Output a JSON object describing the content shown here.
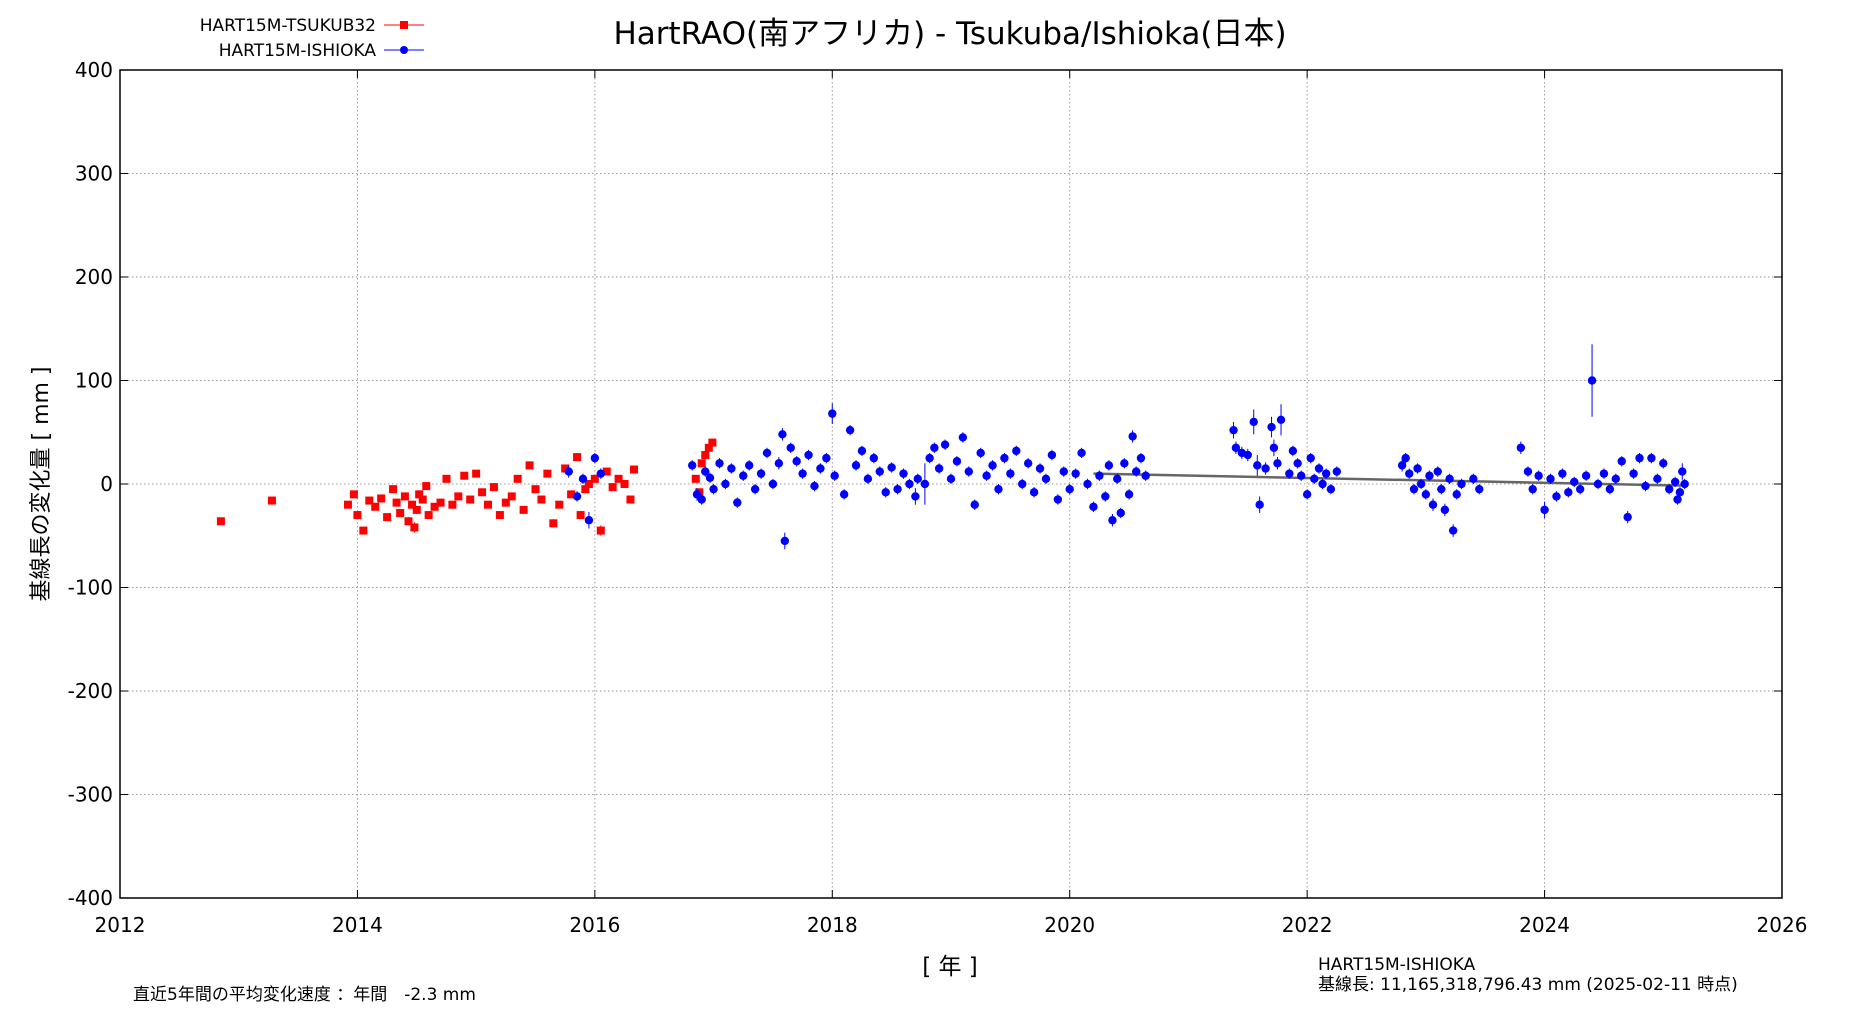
{
  "chart_data": {
    "type": "scatter",
    "title": "HartRAO(南アフリカ) - Tsukuba/Ishioka(日本)",
    "xlabel": "[ 年 ]",
    "ylabel": "基線長の変化量 [ mm ]",
    "xlim": [
      2012,
      2026
    ],
    "ylim": [
      -400,
      400
    ],
    "xticks": [
      "2012",
      "2014",
      "2016",
      "2018",
      "2020",
      "2022",
      "2024",
      "2026"
    ],
    "yticks": [
      "400",
      "300",
      "200",
      "100",
      "0",
      "-100",
      "-200",
      "-300",
      "-400"
    ],
    "grid": true,
    "legend_position": "top-left",
    "series": [
      {
        "name": "HART15M-TSUKUB32",
        "color": "#ff0000",
        "marker": "square",
        "points": [
          [
            2012.85,
            -36,
            0
          ],
          [
            2013.28,
            -16,
            0
          ],
          [
            2013.92,
            -20,
            0
          ],
          [
            2013.97,
            -10,
            0
          ],
          [
            2014.0,
            -30,
            0
          ],
          [
            2014.05,
            -45,
            0
          ],
          [
            2014.1,
            -16,
            0
          ],
          [
            2014.15,
            -22,
            0
          ],
          [
            2014.2,
            -14,
            0
          ],
          [
            2014.25,
            -32,
            3
          ],
          [
            2014.3,
            -5,
            0
          ],
          [
            2014.33,
            -18,
            0
          ],
          [
            2014.36,
            -28,
            3
          ],
          [
            2014.4,
            -12,
            0
          ],
          [
            2014.43,
            -36,
            4
          ],
          [
            2014.46,
            -20,
            0
          ],
          [
            2014.48,
            -42,
            5
          ],
          [
            2014.5,
            -25,
            0
          ],
          [
            2014.52,
            -10,
            0
          ],
          [
            2014.55,
            -15,
            0
          ],
          [
            2014.58,
            -2,
            0
          ],
          [
            2014.6,
            -30,
            0
          ],
          [
            2014.65,
            -22,
            0
          ],
          [
            2014.7,
            -18,
            0
          ],
          [
            2014.75,
            5,
            0
          ],
          [
            2014.8,
            -20,
            0
          ],
          [
            2014.85,
            -12,
            0
          ],
          [
            2014.9,
            8,
            0
          ],
          [
            2014.95,
            -15,
            0
          ],
          [
            2015.0,
            10,
            0
          ],
          [
            2015.05,
            -8,
            0
          ],
          [
            2015.1,
            -20,
            0
          ],
          [
            2015.15,
            -3,
            0
          ],
          [
            2015.2,
            -30,
            0
          ],
          [
            2015.25,
            -18,
            0
          ],
          [
            2015.3,
            -12,
            0
          ],
          [
            2015.35,
            5,
            0
          ],
          [
            2015.4,
            -25,
            3
          ],
          [
            2015.45,
            18,
            0
          ],
          [
            2015.5,
            -5,
            0
          ],
          [
            2015.55,
            -15,
            0
          ],
          [
            2015.6,
            10,
            0
          ],
          [
            2015.65,
            -38,
            4
          ],
          [
            2015.7,
            -20,
            0
          ],
          [
            2015.75,
            15,
            0
          ],
          [
            2015.8,
            -10,
            0
          ],
          [
            2015.85,
            26,
            0
          ],
          [
            2015.88,
            -30,
            0
          ],
          [
            2015.92,
            -5,
            0
          ],
          [
            2015.95,
            0,
            0
          ],
          [
            2016.0,
            5,
            0
          ],
          [
            2016.05,
            -45,
            5
          ],
          [
            2016.1,
            12,
            0
          ],
          [
            2016.15,
            -3,
            0
          ],
          [
            2016.2,
            5,
            0
          ],
          [
            2016.25,
            0,
            0
          ],
          [
            2016.3,
            -15,
            0
          ],
          [
            2016.33,
            14,
            0
          ],
          [
            2016.85,
            5,
            0
          ],
          [
            2016.88,
            -8,
            0
          ],
          [
            2016.9,
            20,
            0
          ],
          [
            2016.93,
            28,
            4
          ],
          [
            2016.96,
            35,
            0
          ],
          [
            2016.99,
            40,
            0
          ]
        ]
      },
      {
        "name": "HART15M-ISHIOKA",
        "color": "#0000ff",
        "marker": "circle",
        "points": [
          [
            2015.78,
            12,
            6
          ],
          [
            2015.85,
            -12,
            5
          ],
          [
            2015.9,
            5,
            5
          ],
          [
            2015.95,
            -35,
            8
          ],
          [
            2016.0,
            25,
            5
          ],
          [
            2016.05,
            10,
            5
          ],
          [
            2016.82,
            18,
            5
          ],
          [
            2016.86,
            -10,
            6
          ],
          [
            2016.9,
            -15,
            5
          ],
          [
            2016.93,
            12,
            5
          ],
          [
            2016.97,
            6,
            5
          ],
          [
            2017.0,
            -5,
            5
          ],
          [
            2017.05,
            20,
            5
          ],
          [
            2017.1,
            0,
            5
          ],
          [
            2017.15,
            15,
            5
          ],
          [
            2017.2,
            -18,
            5
          ],
          [
            2017.25,
            8,
            5
          ],
          [
            2017.3,
            18,
            5
          ],
          [
            2017.35,
            -5,
            5
          ],
          [
            2017.4,
            10,
            5
          ],
          [
            2017.45,
            30,
            5
          ],
          [
            2017.5,
            0,
            5
          ],
          [
            2017.55,
            20,
            6
          ],
          [
            2017.58,
            48,
            6
          ],
          [
            2017.6,
            -55,
            8
          ],
          [
            2017.65,
            35,
            5
          ],
          [
            2017.7,
            22,
            5
          ],
          [
            2017.75,
            10,
            5
          ],
          [
            2017.8,
            28,
            5
          ],
          [
            2017.85,
            -2,
            5
          ],
          [
            2017.9,
            15,
            5
          ],
          [
            2017.95,
            25,
            5
          ],
          [
            2018.0,
            68,
            10
          ],
          [
            2018.02,
            8,
            5
          ],
          [
            2018.1,
            -10,
            5
          ],
          [
            2018.15,
            52,
            5
          ],
          [
            2018.2,
            18,
            5
          ],
          [
            2018.25,
            32,
            5
          ],
          [
            2018.3,
            5,
            5
          ],
          [
            2018.35,
            25,
            5
          ],
          [
            2018.4,
            12,
            5
          ],
          [
            2018.45,
            -8,
            5
          ],
          [
            2018.5,
            16,
            5
          ],
          [
            2018.55,
            -5,
            5
          ],
          [
            2018.6,
            10,
            5
          ],
          [
            2018.65,
            0,
            5
          ],
          [
            2018.7,
            -12,
            8
          ],
          [
            2018.72,
            5,
            5
          ],
          [
            2018.78,
            0,
            20
          ],
          [
            2018.82,
            25,
            5
          ],
          [
            2018.86,
            35,
            5
          ],
          [
            2018.9,
            15,
            5
          ],
          [
            2018.95,
            38,
            5
          ],
          [
            2019.0,
            5,
            5
          ],
          [
            2019.05,
            22,
            5
          ],
          [
            2019.1,
            45,
            5
          ],
          [
            2019.15,
            12,
            5
          ],
          [
            2019.2,
            -20,
            5
          ],
          [
            2019.25,
            30,
            5
          ],
          [
            2019.3,
            8,
            5
          ],
          [
            2019.35,
            18,
            5
          ],
          [
            2019.4,
            -5,
            5
          ],
          [
            2019.45,
            25,
            5
          ],
          [
            2019.5,
            10,
            5
          ],
          [
            2019.55,
            32,
            5
          ],
          [
            2019.6,
            0,
            5
          ],
          [
            2019.65,
            20,
            5
          ],
          [
            2019.7,
            -8,
            5
          ],
          [
            2019.75,
            15,
            5
          ],
          [
            2019.8,
            5,
            5
          ],
          [
            2019.85,
            28,
            5
          ],
          [
            2019.9,
            -15,
            5
          ],
          [
            2019.95,
            12,
            5
          ],
          [
            2020.0,
            -5,
            5
          ],
          [
            2020.05,
            10,
            5
          ],
          [
            2020.1,
            30,
            5
          ],
          [
            2020.15,
            0,
            5
          ],
          [
            2020.2,
            -22,
            5
          ],
          [
            2020.25,
            8,
            5
          ],
          [
            2020.3,
            -12,
            5
          ],
          [
            2020.33,
            18,
            5
          ],
          [
            2020.36,
            -35,
            6
          ],
          [
            2020.4,
            5,
            5
          ],
          [
            2020.43,
            -28,
            5
          ],
          [
            2020.46,
            20,
            5
          ],
          [
            2020.5,
            -10,
            5
          ],
          [
            2020.53,
            46,
            6
          ],
          [
            2020.56,
            12,
            5
          ],
          [
            2020.6,
            25,
            5
          ],
          [
            2020.64,
            8,
            5
          ],
          [
            2021.38,
            52,
            8
          ],
          [
            2021.4,
            35,
            6
          ],
          [
            2021.45,
            30,
            6
          ],
          [
            2021.5,
            28,
            6
          ],
          [
            2021.55,
            60,
            12
          ],
          [
            2021.58,
            18,
            10
          ],
          [
            2021.6,
            -20,
            8
          ],
          [
            2021.65,
            15,
            6
          ],
          [
            2021.7,
            55,
            10
          ],
          [
            2021.72,
            35,
            8
          ],
          [
            2021.75,
            20,
            6
          ],
          [
            2021.78,
            62,
            15
          ],
          [
            2021.85,
            10,
            5
          ],
          [
            2021.88,
            32,
            5
          ],
          [
            2021.92,
            20,
            5
          ],
          [
            2021.95,
            8,
            5
          ],
          [
            2022.0,
            -10,
            5
          ],
          [
            2022.03,
            25,
            5
          ],
          [
            2022.06,
            5,
            5
          ],
          [
            2022.1,
            15,
            5
          ],
          [
            2022.13,
            0,
            5
          ],
          [
            2022.16,
            10,
            5
          ],
          [
            2022.2,
            -5,
            5
          ],
          [
            2022.25,
            12,
            5
          ],
          [
            2022.8,
            18,
            6
          ],
          [
            2022.83,
            25,
            5
          ],
          [
            2022.86,
            10,
            5
          ],
          [
            2022.9,
            -5,
            5
          ],
          [
            2022.93,
            15,
            5
          ],
          [
            2022.96,
            0,
            5
          ],
          [
            2023.0,
            -10,
            5
          ],
          [
            2023.03,
            8,
            5
          ],
          [
            2023.06,
            -20,
            6
          ],
          [
            2023.1,
            12,
            5
          ],
          [
            2023.13,
            -5,
            5
          ],
          [
            2023.16,
            -25,
            6
          ],
          [
            2023.2,
            5,
            5
          ],
          [
            2023.23,
            -45,
            6
          ],
          [
            2023.26,
            -10,
            5
          ],
          [
            2023.3,
            0,
            5
          ],
          [
            2023.4,
            5,
            5
          ],
          [
            2023.45,
            -5,
            5
          ],
          [
            2023.8,
            35,
            6
          ],
          [
            2023.86,
            12,
            5
          ],
          [
            2023.9,
            -5,
            5
          ],
          [
            2023.95,
            8,
            5
          ],
          [
            2024.0,
            -25,
            8
          ],
          [
            2024.05,
            5,
            5
          ],
          [
            2024.1,
            -12,
            5
          ],
          [
            2024.15,
            10,
            5
          ],
          [
            2024.2,
            -8,
            5
          ],
          [
            2024.25,
            2,
            5
          ],
          [
            2024.3,
            -5,
            5
          ],
          [
            2024.35,
            8,
            5
          ],
          [
            2024.4,
            100,
            35
          ],
          [
            2024.45,
            0,
            5
          ],
          [
            2024.5,
            10,
            5
          ],
          [
            2024.55,
            -5,
            5
          ],
          [
            2024.6,
            5,
            5
          ],
          [
            2024.65,
            22,
            5
          ],
          [
            2024.7,
            -32,
            6
          ],
          [
            2024.75,
            10,
            5
          ],
          [
            2024.8,
            25,
            5
          ],
          [
            2024.85,
            -2,
            5
          ],
          [
            2024.9,
            25,
            5
          ],
          [
            2024.95,
            5,
            5
          ],
          [
            2025.0,
            20,
            5
          ],
          [
            2025.05,
            -5,
            5
          ],
          [
            2025.1,
            2,
            5
          ],
          [
            2025.12,
            -15,
            5
          ],
          [
            2025.14,
            -8,
            5
          ],
          [
            2025.16,
            12,
            8
          ],
          [
            2025.18,
            0,
            5
          ]
        ]
      }
    ],
    "trend_line": {
      "color": "#666666",
      "x": [
        2020.2,
        2025.15
      ],
      "y": [
        10,
        -1.5
      ]
    },
    "annotations": {
      "station": "HART15M-ISHIOKA",
      "baseline_length": "基線長: 11,165,318,796.43 mm (2025-02-11 時点)",
      "rate": "直近5年間の平均変化速度 ：年間　-2.3 mm"
    }
  }
}
